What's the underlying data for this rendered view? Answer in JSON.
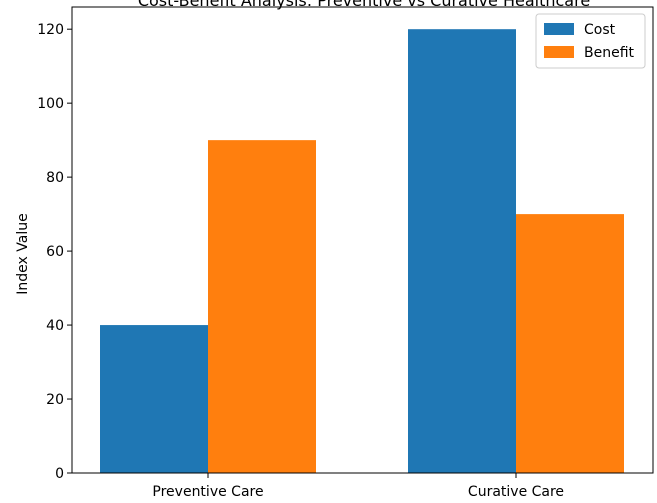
{
  "chart_data": {
    "type": "bar",
    "title": "Cost-Benefit Analysis: Preventive vs Curative Healthcare",
    "xlabel": "",
    "ylabel": "Index Value",
    "categories": [
      "Preventive Care",
      "Curative Care"
    ],
    "series": [
      {
        "name": "Cost",
        "values": [
          40,
          120
        ],
        "color": "#1f77b4"
      },
      {
        "name": "Benefit",
        "values": [
          90,
          70
        ],
        "color": "#ff7f0e"
      }
    ],
    "ylim": [
      0,
      126
    ],
    "yticks": [
      0,
      20,
      40,
      60,
      80,
      100,
      120
    ],
    "grid": false,
    "legend_position": "top-right"
  }
}
